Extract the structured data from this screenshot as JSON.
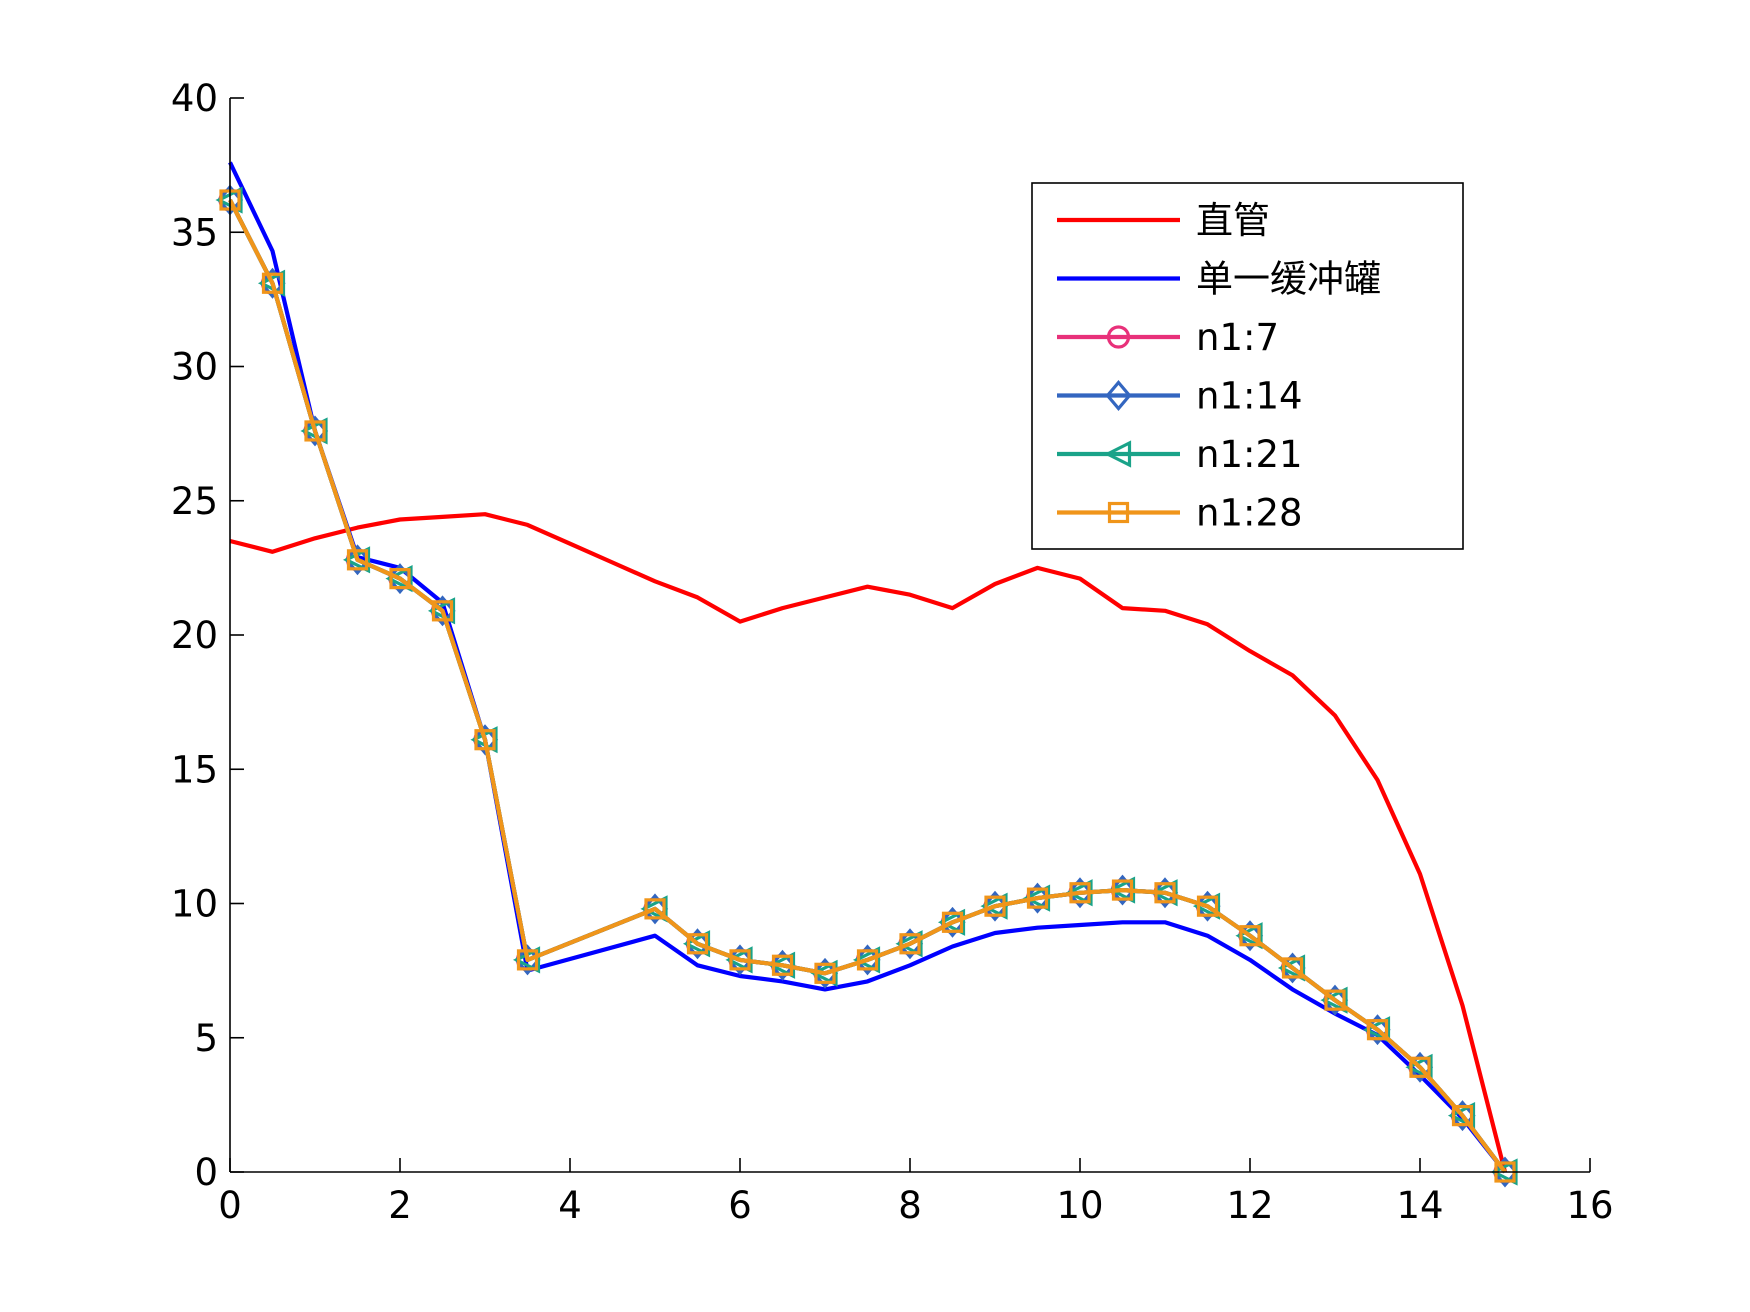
{
  "chart_data": {
    "type": "line",
    "title": "",
    "xlabel": "",
    "ylabel": "",
    "xlim": [
      0,
      16
    ],
    "ylim": [
      0,
      40
    ],
    "xticks": [
      0,
      2,
      4,
      6,
      8,
      10,
      12,
      14,
      16
    ],
    "yticks": [
      0,
      5,
      10,
      15,
      20,
      25,
      30,
      35,
      40
    ],
    "grid": false,
    "legend_position": "top-right",
    "series": [
      {
        "name": "直管",
        "color": "#ff0000",
        "marker": "none",
        "x": [
          0,
          0.5,
          1,
          1.5,
          2,
          2.5,
          3,
          3.5,
          4,
          4.5,
          5,
          5.5,
          6,
          6.5,
          7,
          7.5,
          8,
          8.5,
          9,
          9.5,
          10,
          10.5,
          11,
          11.5,
          12,
          12.5,
          13,
          13.5,
          14,
          14.5,
          15
        ],
        "y": [
          23.5,
          23.1,
          23.6,
          24.0,
          24.3,
          24.4,
          24.5,
          24.1,
          23.4,
          22.7,
          22.0,
          21.4,
          20.5,
          21.0,
          21.4,
          21.8,
          21.5,
          21.0,
          21.9,
          22.5,
          22.1,
          21.0,
          20.9,
          20.4,
          19.4,
          18.5,
          17.0,
          14.6,
          11.1,
          6.2,
          0.0
        ]
      },
      {
        "name": "单一缓冲罐",
        "color": "#0000ff",
        "marker": "none",
        "x": [
          0,
          0.5,
          1,
          1.5,
          2,
          2.5,
          3,
          3.5,
          5,
          5.5,
          6,
          6.5,
          7,
          7.5,
          8,
          8.5,
          9,
          9.5,
          10,
          10.5,
          11,
          11.5,
          12,
          12.5,
          13,
          13.5,
          14,
          14.5,
          15
        ],
        "y": [
          37.6,
          34.3,
          27.6,
          22.9,
          22.5,
          21.2,
          16.1,
          7.5,
          8.8,
          7.7,
          7.3,
          7.1,
          6.8,
          7.1,
          7.7,
          8.4,
          8.9,
          9.1,
          9.2,
          9.3,
          9.3,
          8.8,
          7.9,
          6.8,
          5.9,
          5.1,
          3.6,
          2.0,
          0.0
        ]
      },
      {
        "name": "n1:7",
        "color": "#e8317a",
        "marker": "circle",
        "x": [
          0,
          0.5,
          1,
          1.5,
          2,
          2.5,
          3,
          3.5,
          5,
          5.5,
          6,
          6.5,
          7,
          7.5,
          8,
          8.5,
          9,
          9.5,
          10,
          10.5,
          11,
          11.5,
          12,
          12.5,
          13,
          13.5,
          14,
          14.5,
          15
        ],
        "y": [
          36.2,
          33.1,
          27.6,
          22.8,
          22.1,
          20.9,
          16.1,
          7.9,
          9.8,
          8.5,
          7.9,
          7.7,
          7.4,
          7.9,
          8.5,
          9.3,
          9.9,
          10.2,
          10.4,
          10.5,
          10.4,
          9.9,
          8.8,
          7.6,
          6.4,
          5.3,
          3.9,
          2.1,
          0.0
        ]
      },
      {
        "name": "n1:14",
        "color": "#3366c0",
        "marker": "diamond",
        "x": [
          0,
          0.5,
          1,
          1.5,
          2,
          2.5,
          3,
          3.5,
          5,
          5.5,
          6,
          6.5,
          7,
          7.5,
          8,
          8.5,
          9,
          9.5,
          10,
          10.5,
          11,
          11.5,
          12,
          12.5,
          13,
          13.5,
          14,
          14.5,
          15
        ],
        "y": [
          36.2,
          33.1,
          27.6,
          22.8,
          22.1,
          20.9,
          16.1,
          7.9,
          9.8,
          8.5,
          7.9,
          7.7,
          7.4,
          7.9,
          8.5,
          9.3,
          9.9,
          10.2,
          10.4,
          10.5,
          10.4,
          9.9,
          8.8,
          7.6,
          6.4,
          5.3,
          3.9,
          2.1,
          0.0
        ]
      },
      {
        "name": "n1:21",
        "color": "#1aa389",
        "marker": "triangle-left",
        "x": [
          0,
          0.5,
          1,
          1.5,
          2,
          2.5,
          3,
          3.5,
          5,
          5.5,
          6,
          6.5,
          7,
          7.5,
          8,
          8.5,
          9,
          9.5,
          10,
          10.5,
          11,
          11.5,
          12,
          12.5,
          13,
          13.5,
          14,
          14.5,
          15
        ],
        "y": [
          36.2,
          33.1,
          27.6,
          22.8,
          22.1,
          20.9,
          16.1,
          7.9,
          9.8,
          8.5,
          7.9,
          7.7,
          7.4,
          7.9,
          8.5,
          9.3,
          9.9,
          10.2,
          10.4,
          10.5,
          10.4,
          9.9,
          8.8,
          7.6,
          6.4,
          5.3,
          3.9,
          2.1,
          0.0
        ]
      },
      {
        "name": "n1:28",
        "color": "#f0951a",
        "marker": "square",
        "x": [
          0,
          0.5,
          1,
          1.5,
          2,
          2.5,
          3,
          3.5,
          5,
          5.5,
          6,
          6.5,
          7,
          7.5,
          8,
          8.5,
          9,
          9.5,
          10,
          10.5,
          11,
          11.5,
          12,
          12.5,
          13,
          13.5,
          14,
          14.5,
          15
        ],
        "y": [
          36.2,
          33.1,
          27.6,
          22.8,
          22.1,
          20.9,
          16.1,
          7.9,
          9.8,
          8.5,
          7.9,
          7.7,
          7.4,
          7.9,
          8.5,
          9.3,
          9.9,
          10.2,
          10.4,
          10.5,
          10.4,
          9.9,
          8.8,
          7.6,
          6.4,
          5.3,
          3.9,
          2.1,
          0.0
        ]
      }
    ]
  }
}
